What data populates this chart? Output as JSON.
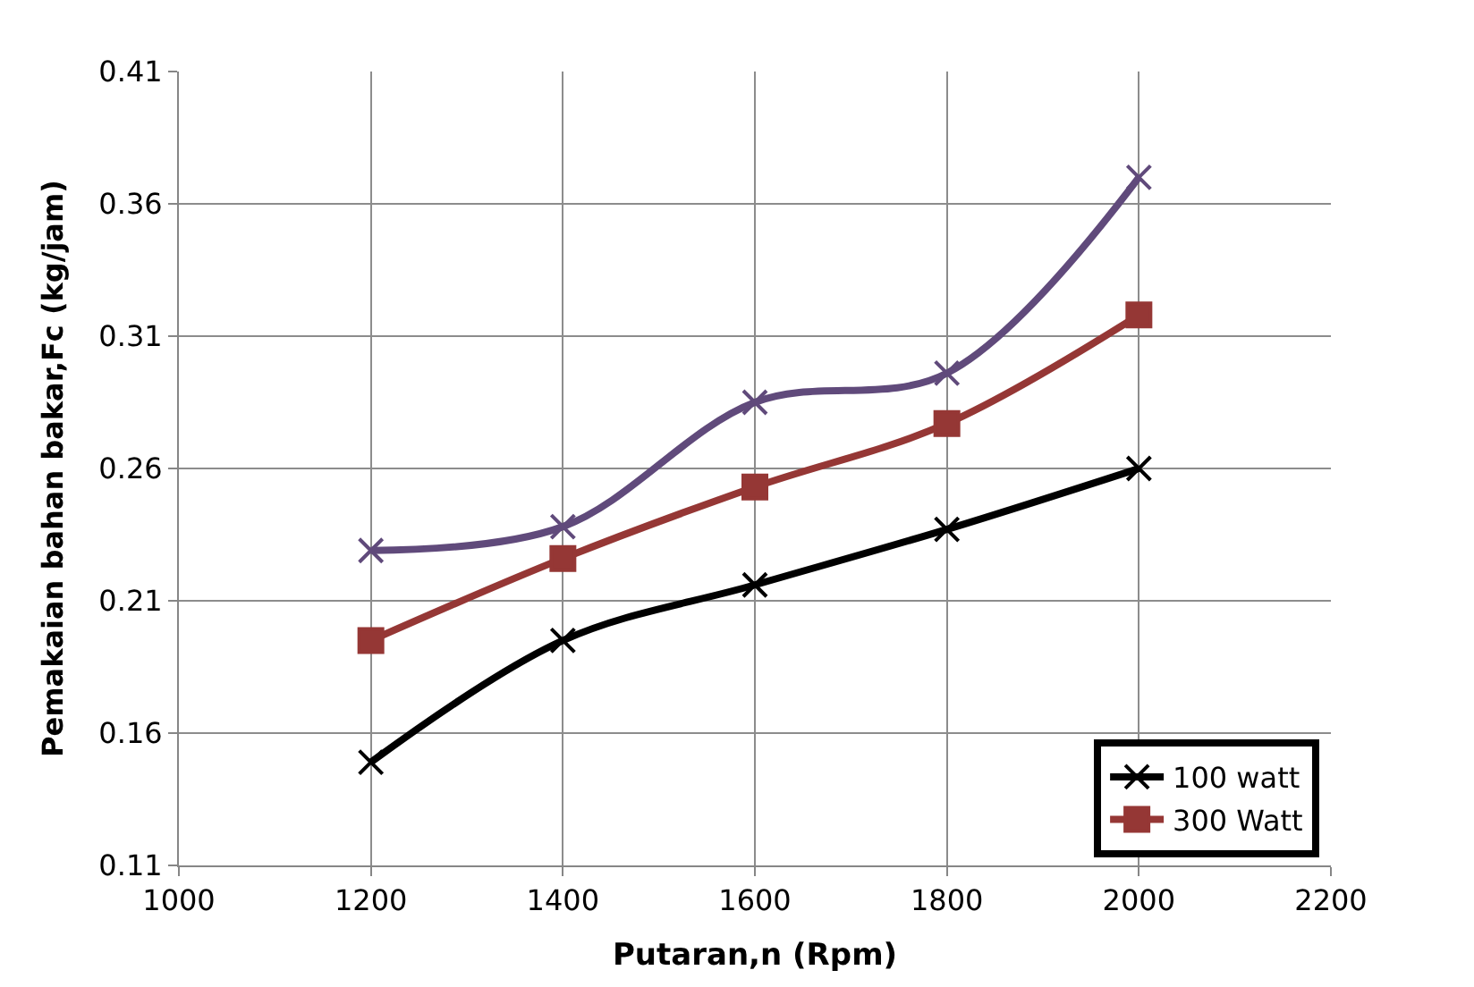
{
  "chart_data": {
    "type": "line",
    "xlabel": "Putaran,n (Rpm)",
    "ylabel": "Pemakaian bahan bakar,Fc (kg/jam)",
    "x": [
      1200,
      1400,
      1600,
      1800,
      2000
    ],
    "series": [
      {
        "name": "100 watt",
        "color": "#000000",
        "marker": "cross",
        "values": [
          0.149,
          0.195,
          0.216,
          0.237,
          0.26
        ]
      },
      {
        "name": "300 Watt",
        "color": "#953735",
        "marker": "square",
        "values": [
          0.195,
          0.226,
          0.253,
          0.277,
          0.318
        ]
      },
      {
        "color": "#604a7b",
        "marker": "cross",
        "values": [
          0.229,
          0.238,
          0.285,
          0.296,
          0.37
        ]
      }
    ],
    "xlim": [
      1000,
      2200
    ],
    "xticks": [
      1000,
      1200,
      1400,
      1600,
      1800,
      2000,
      2200
    ],
    "ylim": [
      0.11,
      0.41
    ],
    "yticks": [
      0.11,
      0.16,
      0.21,
      0.26,
      0.31,
      0.36,
      0.41
    ],
    "grid": true,
    "legend": "bottom right"
  }
}
